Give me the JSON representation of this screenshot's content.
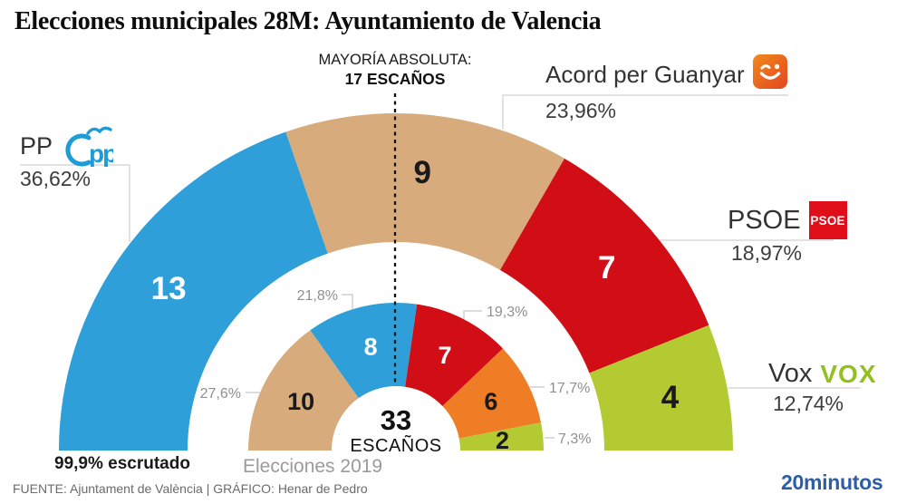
{
  "header": {
    "title": "Elecciones municipales 28M: Ayuntamiento de Valencia"
  },
  "majority": {
    "label": "MAYORÍA ABSOLUTA:",
    "seats_label": "17 ESCAÑOS"
  },
  "center": {
    "total": "33",
    "unit": "ESCAÑOS"
  },
  "notes": {
    "escrutado": "99,9% escrutado",
    "inner_ring_caption": "Elecciones 2019"
  },
  "footer": {
    "source": "FUENTE: Ajuntament de València  |  GRÁFICO: Henar de Pedro",
    "brand": "20minutos"
  },
  "parties": {
    "pp": {
      "name": "PP",
      "pct": "36,62%",
      "logo_text": "pp"
    },
    "acord": {
      "name": "Acord per Guanyar",
      "pct": "23,96%"
    },
    "psoe": {
      "name": "PSOE",
      "pct": "18,97%",
      "logo_text": "PSOE"
    },
    "vox": {
      "name": "Vox",
      "pct": "12,74%",
      "logo_text": "VOX"
    }
  },
  "colors": {
    "blue": "#2E9FD8",
    "tan": "#D7AB7B",
    "red": "#D10E15",
    "orange": "#EE7D25",
    "green": "#B4CA33",
    "pp_logo_blue": "#1E9CD8",
    "psoe_logo_red": "#DE0F18",
    "vox_logo_green": "#93C01F",
    "brand_blue": "#2D5DA6",
    "tick_gray": "#8f8f8f",
    "leader_gray": "#d9d9d9",
    "dashed_line": "#111111"
  },
  "chart_data": {
    "type": "pie",
    "variant": "nested-half-donut-hemicycle",
    "title": "Elecciones municipales 28M: Ayuntamiento de Valencia",
    "total_seats": 33,
    "majority_seats": 17,
    "outer_ring": {
      "series": [
        {
          "party": "PP",
          "seats": 13,
          "pct": "36,62%",
          "color": "#2E9FD8",
          "seat_label_color": "#ffffff"
        },
        {
          "party": "Acord per Guanyar",
          "seats": 9,
          "pct": "23,96%",
          "color": "#D7AB7B",
          "seat_label_color": "#1a1a1a"
        },
        {
          "party": "PSOE",
          "seats": 7,
          "pct": "18,97%",
          "color": "#D10E15",
          "seat_label_color": "#ffffff"
        },
        {
          "party": "Vox",
          "seats": 4,
          "pct": "12,74%",
          "color": "#B4CA33",
          "seat_label_color": "#1a1a1a"
        }
      ]
    },
    "inner_ring": {
      "caption": "Elecciones 2019",
      "series": [
        {
          "seats": 10,
          "pct": "27,6%",
          "color": "#D7AB7B",
          "seat_label_color": "#1a1a1a"
        },
        {
          "seats": 8,
          "pct": "21,8%",
          "color": "#2E9FD8",
          "seat_label_color": "#ffffff"
        },
        {
          "seats": 7,
          "pct": "19,3%",
          "color": "#D10E15",
          "seat_label_color": "#ffffff"
        },
        {
          "seats": 6,
          "pct": "17,7%",
          "color": "#EE7D25",
          "seat_label_color": "#1a1a1a"
        },
        {
          "seats": 2,
          "pct": "7,3%",
          "color": "#B4CA33",
          "seat_label_color": "#1a1a1a"
        }
      ]
    }
  }
}
